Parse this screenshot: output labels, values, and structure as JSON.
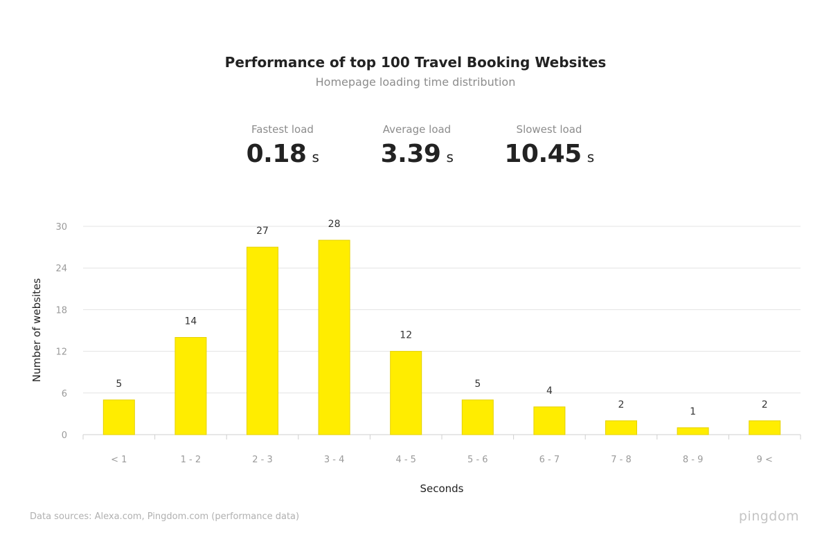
{
  "header": {
    "title": "Performance of top 100 Travel Booking Websites",
    "subtitle": "Homepage loading time distribution"
  },
  "stats": {
    "fastest": {
      "label": "Fastest load",
      "value": "0.18",
      "unit": "s"
    },
    "average": {
      "label": "Average load",
      "value": "3.39",
      "unit": "s"
    },
    "slowest": {
      "label": "Slowest load",
      "value": "10.45",
      "unit": "s"
    }
  },
  "chart_data": {
    "type": "bar",
    "categories": [
      "< 1",
      "1 - 2",
      "2 - 3",
      "3 - 4",
      "4 - 5",
      "5 - 6",
      "6 - 7",
      "7 - 8",
      "8 - 9",
      "9 <"
    ],
    "values": [
      5,
      14,
      27,
      28,
      12,
      5,
      4,
      2,
      1,
      2
    ],
    "data_labels": [
      "5",
      "14",
      "27",
      "28",
      "12",
      "5",
      "4",
      "2",
      "1",
      "2"
    ],
    "xlabel": "Seconds",
    "ylabel": "Number of websites",
    "ylim": [
      0,
      30
    ],
    "yticks": [
      0,
      6,
      12,
      18,
      24,
      30
    ],
    "grid": true,
    "bar_color": "#ffed00",
    "bar_edge_color": "#e5d100",
    "legend": "none"
  },
  "footer": {
    "source": "Data sources: Alexa.com, Pingdom.com (performance data)",
    "brand": "pingdom"
  }
}
